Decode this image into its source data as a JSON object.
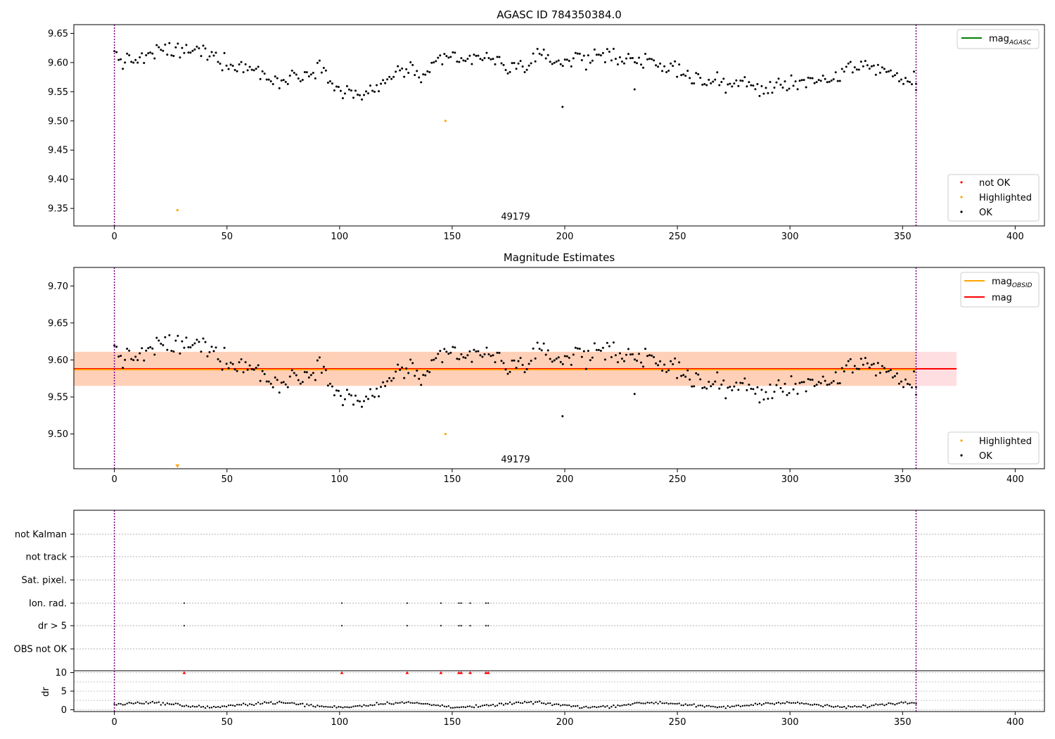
{
  "chart_data": [
    {
      "type": "scatter",
      "title": "AGASC ID 784350384.0",
      "annotation": "49179",
      "xlim": [
        -18,
        413
      ],
      "ylim": [
        9.32,
        9.665
      ],
      "xticks": [
        0,
        50,
        100,
        150,
        200,
        250,
        300,
        350,
        400
      ],
      "yticks": [
        9.35,
        9.4,
        9.45,
        9.5,
        9.55,
        9.6,
        9.65
      ],
      "vlines": [
        0,
        356
      ],
      "legend_lines": [
        {
          "label": "mag",
          "sub": "AGASC",
          "color": "#008000"
        }
      ],
      "legend_points": [
        {
          "label": "not OK",
          "color": "#ff0000"
        },
        {
          "label": "Highlighted",
          "color": "#ffa500"
        },
        {
          "label": "OK",
          "color": "#000000"
        }
      ],
      "highlighted": [
        [
          28,
          9.347
        ],
        [
          147,
          9.5
        ]
      ],
      "ok_knots": [
        [
          0,
          9.615
        ],
        [
          5,
          9.6
        ],
        [
          10,
          9.605
        ],
        [
          15,
          9.61
        ],
        [
          20,
          9.62
        ],
        [
          25,
          9.622
        ],
        [
          30,
          9.618
        ],
        [
          35,
          9.62
        ],
        [
          40,
          9.618
        ],
        [
          45,
          9.61
        ],
        [
          50,
          9.6
        ],
        [
          55,
          9.595
        ],
        [
          60,
          9.59
        ],
        [
          65,
          9.585
        ],
        [
          70,
          9.568
        ],
        [
          75,
          9.566
        ],
        [
          80,
          9.58
        ],
        [
          85,
          9.58
        ],
        [
          90,
          9.593
        ],
        [
          95,
          9.585
        ],
        [
          100,
          9.548
        ],
        [
          105,
          9.55
        ],
        [
          110,
          9.545
        ],
        [
          115,
          9.548
        ],
        [
          120,
          9.565
        ],
        [
          125,
          9.585
        ],
        [
          130,
          9.59
        ],
        [
          135,
          9.575
        ],
        [
          140,
          9.585
        ],
        [
          145,
          9.6
        ],
        [
          150,
          9.61
        ],
        [
          155,
          9.6
        ],
        [
          160,
          9.61
        ],
        [
          165,
          9.608
        ],
        [
          170,
          9.6
        ],
        [
          175,
          9.59
        ],
        [
          180,
          9.595
        ],
        [
          185,
          9.6
        ],
        [
          190,
          9.61
        ],
        [
          195,
          9.605
        ],
        [
          200,
          9.6
        ],
        [
          205,
          9.61
        ],
        [
          210,
          9.605
        ],
        [
          215,
          9.615
        ],
        [
          220,
          9.612
        ],
        [
          225,
          9.608
        ],
        [
          230,
          9.61
        ],
        [
          235,
          9.6
        ],
        [
          240,
          9.595
        ],
        [
          245,
          9.59
        ],
        [
          250,
          9.59
        ],
        [
          255,
          9.58
        ],
        [
          260,
          9.57
        ],
        [
          265,
          9.565
        ],
        [
          270,
          9.565
        ],
        [
          275,
          9.565
        ],
        [
          280,
          9.565
        ],
        [
          285,
          9.555
        ],
        [
          290,
          9.555
        ],
        [
          295,
          9.56
        ],
        [
          300,
          9.565
        ],
        [
          305,
          9.57
        ],
        [
          310,
          9.57
        ],
        [
          315,
          9.565
        ],
        [
          320,
          9.565
        ],
        [
          325,
          9.59
        ],
        [
          330,
          9.595
        ],
        [
          335,
          9.595
        ],
        [
          340,
          9.59
        ],
        [
          345,
          9.585
        ],
        [
          350,
          9.565
        ],
        [
          356,
          9.575
        ]
      ],
      "ok_count": 380,
      "ok_outliers": [
        [
          199,
          9.524
        ],
        [
          231,
          9.554
        ],
        [
          356,
          9.553
        ]
      ]
    },
    {
      "type": "scatter",
      "title": "Magnitude Estimates",
      "annotation": "49179",
      "xlim": [
        -18,
        413
      ],
      "ylim": [
        9.453,
        9.725
      ],
      "xticks": [
        0,
        50,
        100,
        150,
        200,
        250,
        300,
        350,
        400
      ],
      "yticks": [
        9.5,
        9.55,
        9.6,
        9.65,
        9.7
      ],
      "vlines": [
        0,
        356
      ],
      "mag": 9.588,
      "mag_obsid": 9.587,
      "band_outer": [
        9.565,
        9.611
      ],
      "band_inner": [
        9.565,
        9.611
      ],
      "band_xrange": [
        -18,
        374
      ],
      "inner_band_xrange": [
        -18,
        356
      ],
      "legend_lines": [
        {
          "label": "mag",
          "sub": "OBSID",
          "color": "#ffa500"
        },
        {
          "label": "mag",
          "sub": "",
          "color": "#ff0000"
        }
      ],
      "legend_points": [
        {
          "label": "Highlighted",
          "color": "#ffa500"
        },
        {
          "label": "OK",
          "color": "#000000"
        }
      ],
      "highlighted": [
        [
          147,
          9.5
        ]
      ],
      "below_marker": [
        28,
        9.456
      ]
    },
    {
      "type": "scatter",
      "xlim": [
        -18,
        413
      ],
      "xticks": [
        0,
        50,
        100,
        150,
        200,
        250,
        300,
        350,
        400
      ],
      "vlines": [
        0,
        356
      ],
      "flag_rows": [
        "not Kalman",
        "not track",
        "Sat. pixel.",
        "Ion. rad.",
        "dr > 5",
        "OBS not OK"
      ],
      "flag_x": [
        31,
        101,
        130,
        145,
        153,
        154,
        158,
        165,
        166
      ],
      "flag_rows_active": [
        "Ion. rad.",
        "dr > 5"
      ],
      "ylabel": "dr",
      "dr_ylim": [
        -0.5,
        10.5
      ],
      "dr_yticks": [
        0,
        5,
        10
      ],
      "dr_outliers_clipped": [
        31,
        101,
        130,
        145,
        153,
        154,
        158,
        165,
        166
      ]
    }
  ]
}
